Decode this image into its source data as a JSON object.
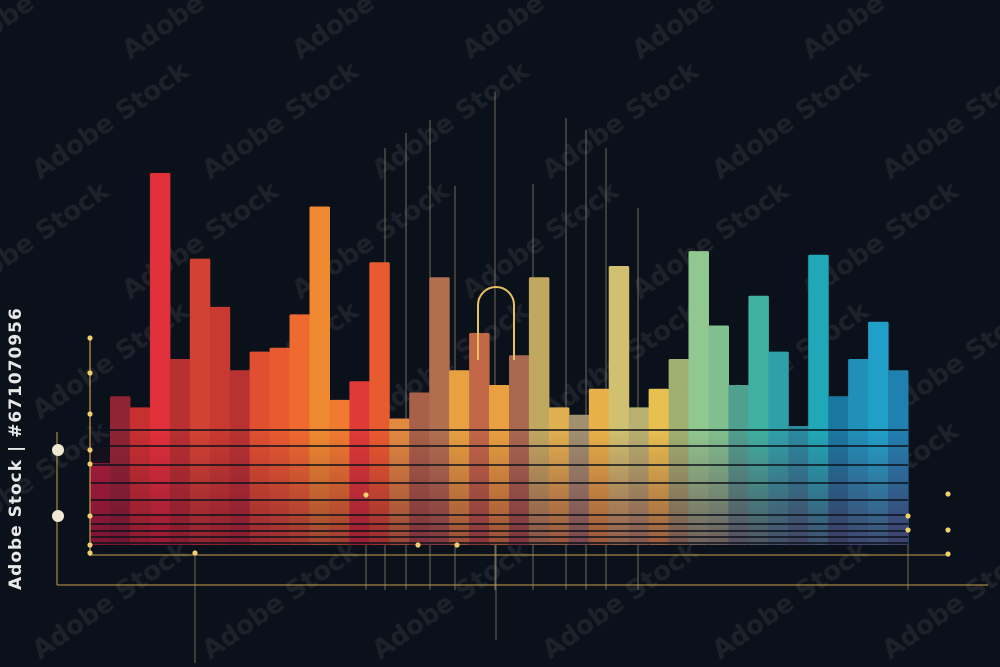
{
  "watermark": {
    "text": "Adobe Stock",
    "side_text": "Adobe Stock | #671070956"
  },
  "background": "#0b111a",
  "accent": "#e8c060",
  "chart_data": {
    "type": "bar",
    "title": "",
    "xlabel": "",
    "ylabel": "",
    "ylim": [
      0,
      100
    ],
    "grid": false,
    "legend": "none",
    "values": [
      22,
      40,
      37,
      100,
      50,
      77,
      64,
      47,
      52,
      53,
      62,
      91,
      39,
      44,
      76,
      34,
      41,
      72,
      47,
      57,
      43,
      51,
      72,
      37,
      35,
      42,
      75,
      37,
      42,
      50,
      79,
      59,
      43,
      67,
      52,
      32,
      78,
      40,
      50,
      60,
      47
    ],
    "colors": [
      "#a8203a",
      "#8e2434",
      "#c83030",
      "#e0303a",
      "#b83030",
      "#d24232",
      "#c83a30",
      "#b83232",
      "#e05030",
      "#e85a30",
      "#ee6a30",
      "#f08a30",
      "#f07a30",
      "#e03a38",
      "#e85a30",
      "#e08a40",
      "#a86048",
      "#b07050",
      "#e8a040",
      "#c06848",
      "#e8a040",
      "#a86850",
      "#c0a860",
      "#e0b050",
      "#a09070",
      "#e8b048",
      "#d0c070",
      "#b8b070",
      "#e8c050",
      "#a0b070",
      "#90c890",
      "#80c090",
      "#50a090",
      "#40b0a0",
      "#30a0a8",
      "#2a8aa0",
      "#20a8b8",
      "#1a78a0",
      "#2090b8",
      "#20a0c8",
      "#2080b0"
    ]
  }
}
